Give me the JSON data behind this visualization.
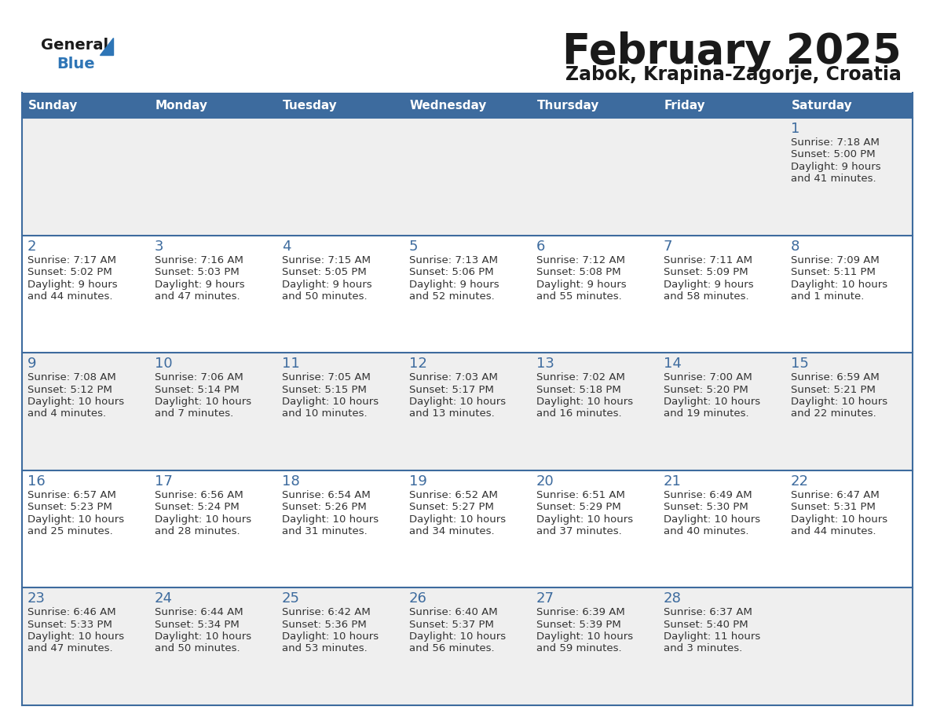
{
  "title": "February 2025",
  "subtitle": "Zabok, Krapina-Zagorje, Croatia",
  "header_bg": "#3d6b9e",
  "header_text": "#ffffff",
  "row_bg_odd": "#efefef",
  "row_bg_even": "#ffffff",
  "cell_border_color": "#3d6b9e",
  "day_headers": [
    "Sunday",
    "Monday",
    "Tuesday",
    "Wednesday",
    "Thursday",
    "Friday",
    "Saturday"
  ],
  "title_color": "#1a1a1a",
  "subtitle_color": "#1a1a1a",
  "day_num_color": "#3d6b9e",
  "cell_text_color": "#333333",
  "logo_general_color": "#1a1a1a",
  "logo_blue_color": "#2e75b6",
  "logo_triangle_color": "#2e75b6",
  "calendar_data": [
    [
      null,
      null,
      null,
      null,
      null,
      null,
      {
        "day": 1,
        "sunrise": "7:18 AM",
        "sunset": "5:00 PM",
        "daylight": "9 hours\nand 41 minutes."
      }
    ],
    [
      {
        "day": 2,
        "sunrise": "7:17 AM",
        "sunset": "5:02 PM",
        "daylight": "9 hours\nand 44 minutes."
      },
      {
        "day": 3,
        "sunrise": "7:16 AM",
        "sunset": "5:03 PM",
        "daylight": "9 hours\nand 47 minutes."
      },
      {
        "day": 4,
        "sunrise": "7:15 AM",
        "sunset": "5:05 PM",
        "daylight": "9 hours\nand 50 minutes."
      },
      {
        "day": 5,
        "sunrise": "7:13 AM",
        "sunset": "5:06 PM",
        "daylight": "9 hours\nand 52 minutes."
      },
      {
        "day": 6,
        "sunrise": "7:12 AM",
        "sunset": "5:08 PM",
        "daylight": "9 hours\nand 55 minutes."
      },
      {
        "day": 7,
        "sunrise": "7:11 AM",
        "sunset": "5:09 PM",
        "daylight": "9 hours\nand 58 minutes."
      },
      {
        "day": 8,
        "sunrise": "7:09 AM",
        "sunset": "5:11 PM",
        "daylight": "10 hours\nand 1 minute."
      }
    ],
    [
      {
        "day": 9,
        "sunrise": "7:08 AM",
        "sunset": "5:12 PM",
        "daylight": "10 hours\nand 4 minutes."
      },
      {
        "day": 10,
        "sunrise": "7:06 AM",
        "sunset": "5:14 PM",
        "daylight": "10 hours\nand 7 minutes."
      },
      {
        "day": 11,
        "sunrise": "7:05 AM",
        "sunset": "5:15 PM",
        "daylight": "10 hours\nand 10 minutes."
      },
      {
        "day": 12,
        "sunrise": "7:03 AM",
        "sunset": "5:17 PM",
        "daylight": "10 hours\nand 13 minutes."
      },
      {
        "day": 13,
        "sunrise": "7:02 AM",
        "sunset": "5:18 PM",
        "daylight": "10 hours\nand 16 minutes."
      },
      {
        "day": 14,
        "sunrise": "7:00 AM",
        "sunset": "5:20 PM",
        "daylight": "10 hours\nand 19 minutes."
      },
      {
        "day": 15,
        "sunrise": "6:59 AM",
        "sunset": "5:21 PM",
        "daylight": "10 hours\nand 22 minutes."
      }
    ],
    [
      {
        "day": 16,
        "sunrise": "6:57 AM",
        "sunset": "5:23 PM",
        "daylight": "10 hours\nand 25 minutes."
      },
      {
        "day": 17,
        "sunrise": "6:56 AM",
        "sunset": "5:24 PM",
        "daylight": "10 hours\nand 28 minutes."
      },
      {
        "day": 18,
        "sunrise": "6:54 AM",
        "sunset": "5:26 PM",
        "daylight": "10 hours\nand 31 minutes."
      },
      {
        "day": 19,
        "sunrise": "6:52 AM",
        "sunset": "5:27 PM",
        "daylight": "10 hours\nand 34 minutes."
      },
      {
        "day": 20,
        "sunrise": "6:51 AM",
        "sunset": "5:29 PM",
        "daylight": "10 hours\nand 37 minutes."
      },
      {
        "day": 21,
        "sunrise": "6:49 AM",
        "sunset": "5:30 PM",
        "daylight": "10 hours\nand 40 minutes."
      },
      {
        "day": 22,
        "sunrise": "6:47 AM",
        "sunset": "5:31 PM",
        "daylight": "10 hours\nand 44 minutes."
      }
    ],
    [
      {
        "day": 23,
        "sunrise": "6:46 AM",
        "sunset": "5:33 PM",
        "daylight": "10 hours\nand 47 minutes."
      },
      {
        "day": 24,
        "sunrise": "6:44 AM",
        "sunset": "5:34 PM",
        "daylight": "10 hours\nand 50 minutes."
      },
      {
        "day": 25,
        "sunrise": "6:42 AM",
        "sunset": "5:36 PM",
        "daylight": "10 hours\nand 53 minutes."
      },
      {
        "day": 26,
        "sunrise": "6:40 AM",
        "sunset": "5:37 PM",
        "daylight": "10 hours\nand 56 minutes."
      },
      {
        "day": 27,
        "sunrise": "6:39 AM",
        "sunset": "5:39 PM",
        "daylight": "10 hours\nand 59 minutes."
      },
      {
        "day": 28,
        "sunrise": "6:37 AM",
        "sunset": "5:40 PM",
        "daylight": "11 hours\nand 3 minutes."
      },
      null
    ]
  ]
}
